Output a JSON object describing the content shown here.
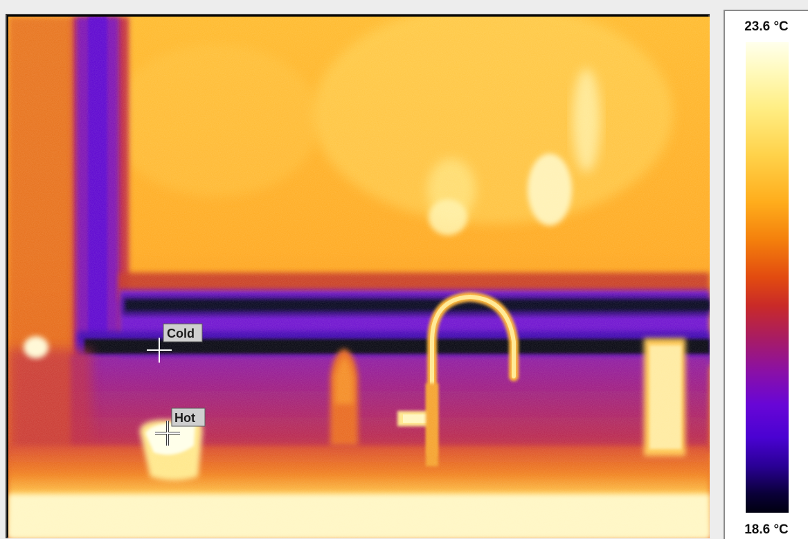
{
  "scale": {
    "max_label": "23.6 °C",
    "min_label": "18.6 °C"
  },
  "markers": {
    "cold_label": "Cold",
    "hot_label": "Hot"
  },
  "colors": {
    "colormap": "iron",
    "hot": "#ffffe6",
    "cold": "#04000a"
  }
}
